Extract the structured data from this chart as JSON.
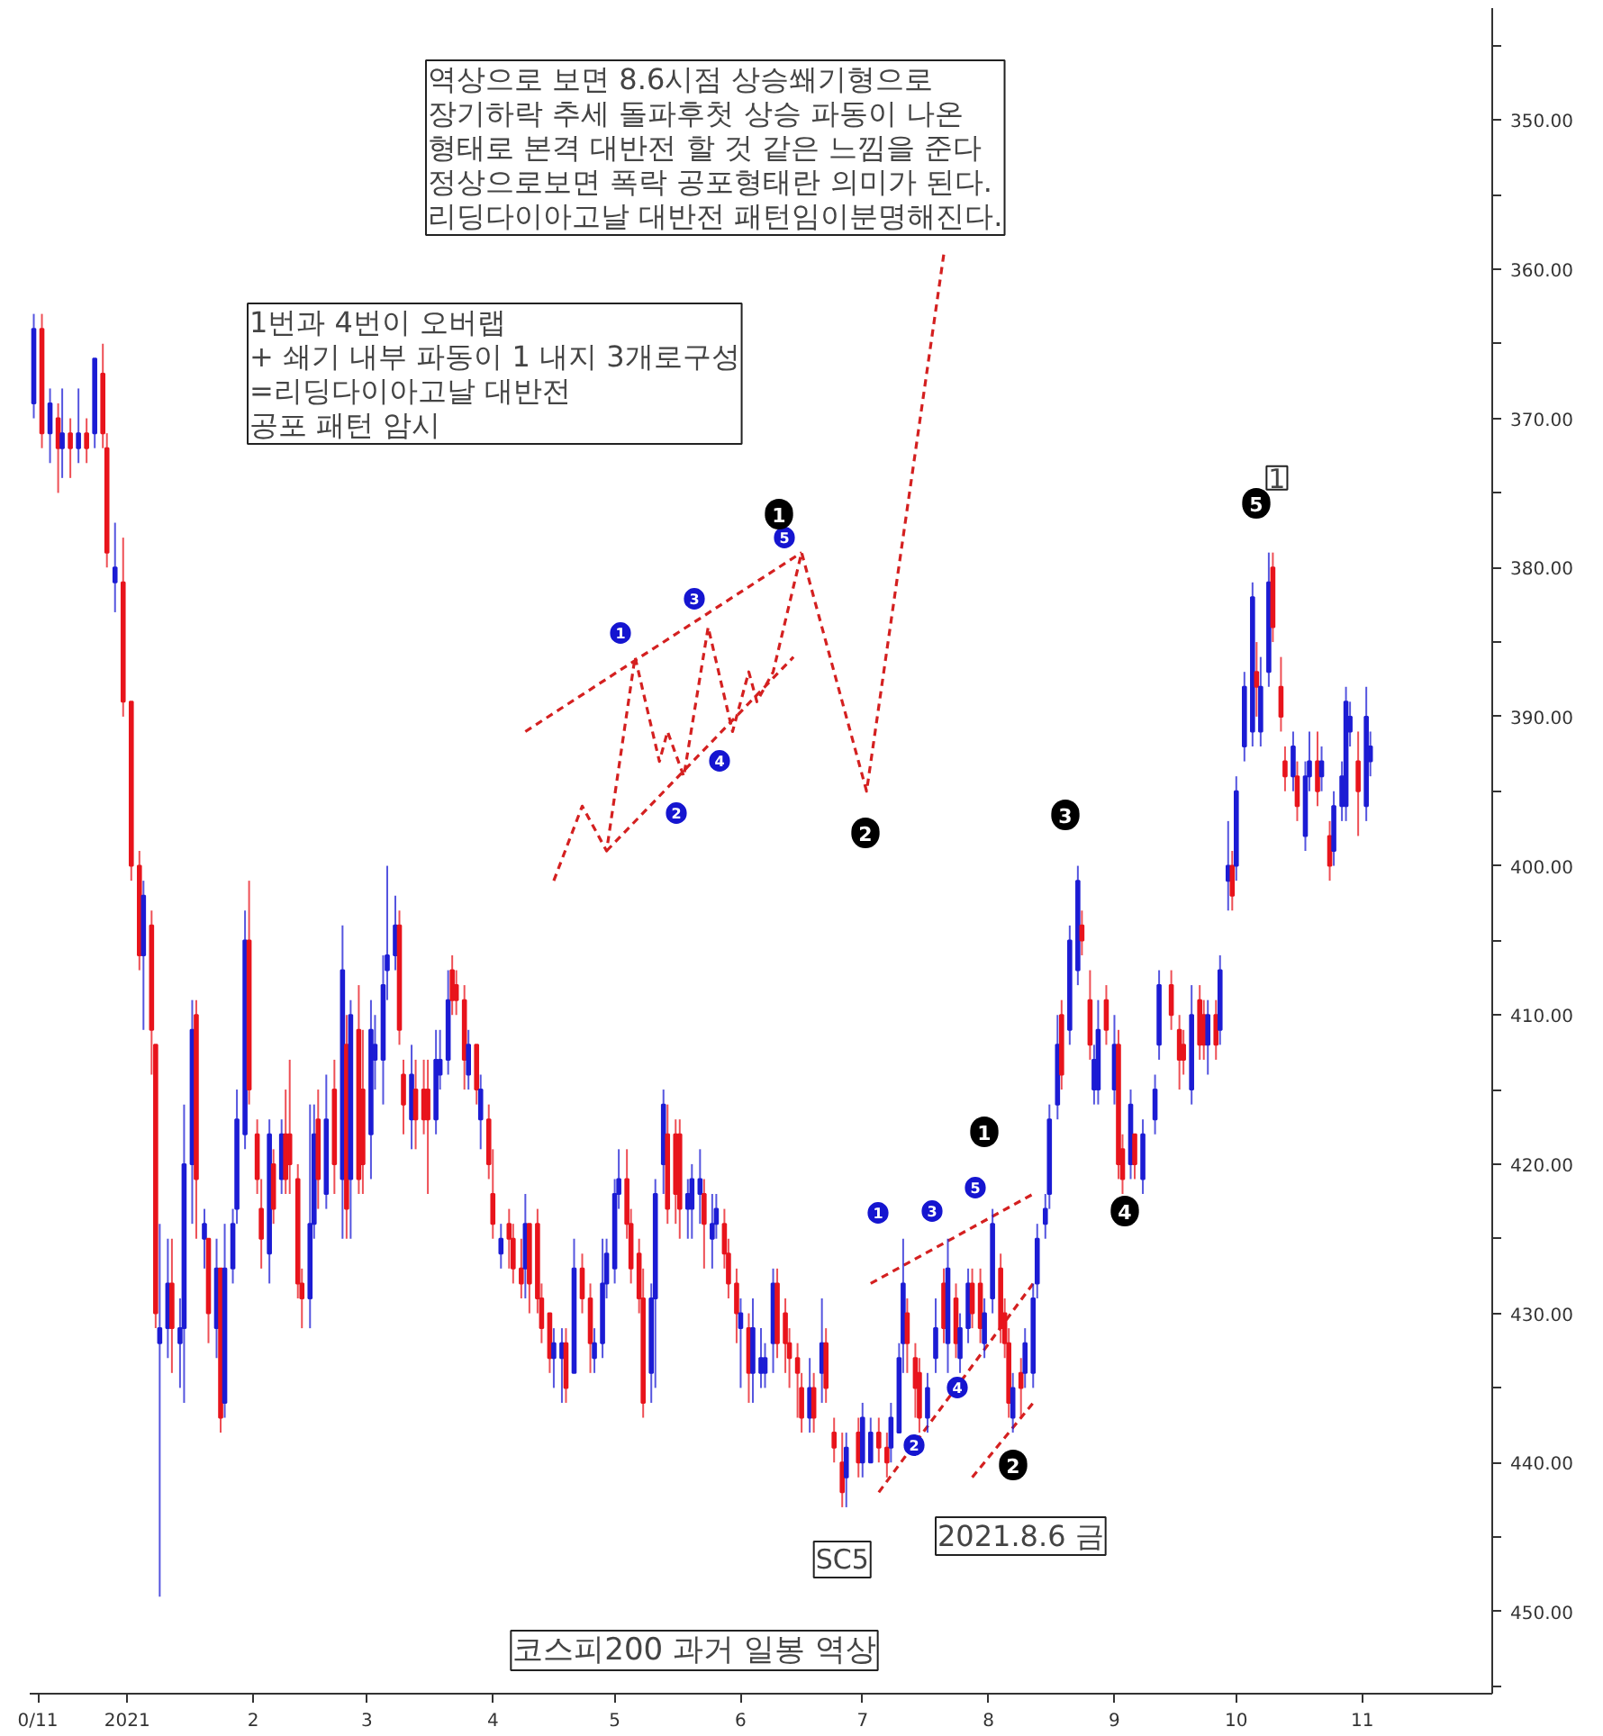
{
  "chart_data": {
    "type": "candlestick",
    "title": "코스피200 과거 일봉 역상",
    "annotations": [
      "역상으로 보면 8.6시점 상승쐐기형으로\n장기하락 추세 돌파후첫 상승 파동이 나온\n형태로 본격 대반전 할 것 같은 느낌을 준다\n정상으로보면 폭락 공포형태란 의미가 된다.\n리딩다이아고날 대반전 패턴임이분명해진다.",
      "1번과 4번이 오버랩\n+ 쇄기 내부 파동이 1 내지 3개로구성\n=리딩다이아고날 대반전\n공포 패턴 암시",
      {
        "text": "SC5",
        "x": "2021-06-26",
        "y": 446.5
      },
      "2021.8.6 금",
      {
        "text": "1",
        "x": "2021-10-11",
        "y": 374
      },
      "1",
      "2",
      "3",
      "4",
      "5",
      "1",
      "2",
      "3",
      "4",
      "5",
      "1",
      "2",
      "1",
      "2",
      "3",
      "4",
      "5"
    ],
    "xlim": [
      "2020-12-08",
      "2021-12-03"
    ],
    "xticks": [
      {
        "value": "2020-12-10",
        "label": "0/11"
      },
      {
        "value": "2021-01-01",
        "label": "2021"
      },
      {
        "value": "2021-02-01",
        "label": "2"
      },
      {
        "value": "2021-03-01",
        "label": "3"
      },
      {
        "value": "2021-04-01",
        "label": "4"
      },
      {
        "value": "2021-05-01",
        "label": "5"
      },
      {
        "value": "2021-06-01",
        "label": "6"
      },
      {
        "value": "2021-07-01",
        "label": "7"
      },
      {
        "value": "2021-08-01",
        "label": "8"
      },
      {
        "value": "2021-09-01",
        "label": "9"
      },
      {
        "value": "2021-10-01",
        "label": "10"
      },
      {
        "value": "2021-11-01",
        "label": "11"
      }
    ],
    "ylim": [
      455.5,
      342.5
    ],
    "yticks": [
      {
        "value": 345,
        "label": null
      },
      {
        "value": 350,
        "label": "350.00"
      },
      {
        "value": 355,
        "label": null
      },
      {
        "value": 360,
        "label": "360.00"
      },
      {
        "value": 365,
        "label": null
      },
      {
        "value": 370,
        "label": "370.00"
      },
      {
        "value": 375,
        "label": null
      },
      {
        "value": 380,
        "label": "380.00"
      },
      {
        "value": 385,
        "label": null
      },
      {
        "value": 390,
        "label": "390.00"
      },
      {
        "value": 395,
        "label": null
      },
      {
        "value": 400,
        "label": "400.00"
      },
      {
        "value": 405,
        "label": null
      },
      {
        "value": 410,
        "label": "410.00"
      },
      {
        "value": 415,
        "label": null
      },
      {
        "value": 420,
        "label": "420.00"
      },
      {
        "value": 425,
        "label": null
      },
      {
        "value": 430,
        "label": "430.00"
      },
      {
        "value": 435,
        "label": null
      },
      {
        "value": 440,
        "label": "440.00"
      },
      {
        "value": 445,
        "label": null
      },
      {
        "value": 450,
        "label": "450.00"
      },
      {
        "value": 455,
        "label": null
      }
    ],
    "x": [
      "2020-12-09",
      "2020-12-11",
      "2020-12-13",
      "2020-12-15",
      "2020-12-16",
      "2020-12-18",
      "2020-12-20",
      "2020-12-22",
      "2020-12-24",
      "2020-12-26",
      "2020-12-27",
      "2020-12-29",
      "2020-12-31",
      "2021-01-02",
      "2021-01-04",
      "2021-01-05",
      "2021-01-07",
      "2021-01-08",
      "2021-01-09",
      "2021-01-11",
      "2021-01-12",
      "2021-01-14",
      "2021-01-15",
      "2021-01-17",
      "2021-01-18",
      "2021-01-20",
      "2021-01-21",
      "2021-01-23",
      "2021-01-24",
      "2021-01-25",
      "2021-01-27",
      "2021-01-28",
      "2021-01-30",
      "2021-01-31",
      "2021-02-02",
      "2021-02-03",
      "2021-02-05",
      "2021-02-06",
      "2021-02-08",
      "2021-02-09",
      "2021-02-10",
      "2021-02-12",
      "2021-02-13",
      "2021-02-15",
      "2021-02-16",
      "2021-02-17",
      "2021-02-19",
      "2021-02-21",
      "2021-02-23",
      "2021-02-24",
      "2021-02-25",
      "2021-02-27",
      "2021-02-28",
      "2021-03-02",
      "2021-03-03",
      "2021-03-05",
      "2021-03-06",
      "2021-03-08",
      "2021-03-09",
      "2021-03-10",
      "2021-03-12",
      "2021-03-13",
      "2021-03-15",
      "2021-03-16",
      "2021-03-18",
      "2021-03-19",
      "2021-03-21",
      "2021-03-22",
      "2021-03-23",
      "2021-03-25",
      "2021-03-26",
      "2021-03-28",
      "2021-03-29",
      "2021-03-31",
      "2021-04-01",
      "2021-04-03",
      "2021-04-05",
      "2021-04-06",
      "2021-04-08",
      "2021-04-09",
      "2021-04-10",
      "2021-04-12",
      "2021-04-13",
      "2021-04-15",
      "2021-04-16",
      "2021-04-18",
      "2021-04-19",
      "2021-04-21",
      "2021-04-23",
      "2021-04-25",
      "2021-04-26",
      "2021-04-28",
      "2021-04-29",
      "2021-05-01",
      "2021-05-02",
      "2021-05-04",
      "2021-05-05",
      "2021-05-07",
      "2021-05-08",
      "2021-05-10",
      "2021-05-11",
      "2021-05-13",
      "2021-05-14",
      "2021-05-16",
      "2021-05-17",
      "2021-05-19",
      "2021-05-20",
      "2021-05-22",
      "2021-05-23",
      "2021-05-25",
      "2021-05-26",
      "2021-05-28",
      "2021-05-29",
      "2021-05-31",
      "2021-06-01",
      "2021-06-03",
      "2021-06-04",
      "2021-06-06",
      "2021-06-07",
      "2021-06-09",
      "2021-06-10",
      "2021-06-12",
      "2021-06-13",
      "2021-06-15",
      "2021-06-16",
      "2021-06-18",
      "2021-06-19",
      "2021-06-21",
      "2021-06-22",
      "2021-06-24",
      "2021-06-26",
      "2021-06-27",
      "2021-06-30",
      "2021-07-01",
      "2021-07-03",
      "2021-07-05",
      "2021-07-07",
      "2021-07-08",
      "2021-07-10",
      "2021-07-11",
      "2021-07-12",
      "2021-07-14",
      "2021-07-15",
      "2021-07-17",
      "2021-07-19",
      "2021-07-21",
      "2021-07-22",
      "2021-07-24",
      "2021-07-25",
      "2021-07-27",
      "2021-07-28",
      "2021-07-30",
      "2021-07-31",
      "2021-08-02",
      "2021-08-04",
      "2021-08-05",
      "2021-08-06",
      "2021-08-07",
      "2021-08-09",
      "2021-08-10",
      "2021-08-12",
      "2021-08-13",
      "2021-08-15",
      "2021-08-16",
      "2021-08-18",
      "2021-08-19",
      "2021-08-21",
      "2021-08-23",
      "2021-08-24",
      "2021-08-26",
      "2021-08-27",
      "2021-08-28",
      "2021-08-30",
      "2021-09-01",
      "2021-09-02",
      "2021-09-03",
      "2021-09-05",
      "2021-09-06",
      "2021-09-08",
      "2021-09-11",
      "2021-09-12",
      "2021-09-15",
      "2021-09-17",
      "2021-09-18",
      "2021-09-20",
      "2021-09-22",
      "2021-09-23",
      "2021-09-24",
      "2021-09-26",
      "2021-09-27",
      "2021-09-29",
      "2021-09-30",
      "2021-10-01",
      "2021-10-03",
      "2021-10-05",
      "2021-10-06",
      "2021-10-07",
      "2021-10-09",
      "2021-10-10",
      "2021-10-12",
      "2021-10-13",
      "2021-10-15",
      "2021-10-16",
      "2021-10-18",
      "2021-10-19",
      "2021-10-21",
      "2021-10-22",
      "2021-10-24",
      "2021-10-25",
      "2021-10-27",
      "2021-10-28",
      "2021-10-29",
      "2021-10-31",
      "2021-11-02",
      "2021-11-03"
    ],
    "ohlc": [
      [
        369,
        370,
        363,
        364
      ],
      [
        364,
        372,
        363,
        371
      ],
      [
        371,
        373,
        368,
        369
      ],
      [
        370,
        375,
        369,
        372
      ],
      [
        372,
        374,
        368,
        371
      ],
      [
        371,
        374,
        370,
        372
      ],
      [
        372,
        373,
        368,
        371
      ],
      [
        371,
        373,
        370,
        372
      ],
      [
        371,
        372,
        366,
        366
      ],
      [
        367,
        372,
        365,
        371
      ],
      [
        372,
        380,
        371,
        379
      ],
      [
        381,
        383,
        377,
        380
      ],
      [
        381,
        390,
        378,
        389
      ],
      [
        389,
        401,
        389,
        400
      ],
      [
        400,
        407,
        399,
        406
      ],
      [
        406,
        411,
        401,
        402
      ],
      [
        404,
        414,
        403,
        411
      ],
      [
        412,
        431,
        412,
        430
      ],
      [
        432,
        449,
        424,
        431
      ],
      [
        431,
        433,
        425,
        428
      ],
      [
        428,
        434,
        425,
        431
      ],
      [
        432,
        435,
        429,
        431
      ],
      [
        431,
        436,
        416,
        420
      ],
      [
        420,
        424,
        409,
        411
      ],
      [
        410,
        425,
        409,
        421
      ],
      [
        425,
        427,
        423,
        424
      ],
      [
        425,
        432,
        425,
        430
      ],
      [
        431,
        433,
        425,
        427
      ],
      [
        427,
        438,
        427,
        437
      ],
      [
        436,
        437,
        424,
        427
      ],
      [
        427,
        428,
        423,
        424
      ],
      [
        423,
        424,
        415,
        417
      ],
      [
        418,
        419,
        403,
        405
      ],
      [
        405,
        416,
        401,
        415
      ],
      [
        418,
        422,
        417,
        421
      ],
      [
        423,
        427,
        421,
        425
      ],
      [
        426,
        428,
        417,
        418
      ],
      [
        420,
        424,
        419,
        423
      ],
      [
        421,
        422,
        417,
        418
      ],
      [
        418,
        422,
        415,
        421
      ],
      [
        418,
        422,
        413,
        420
      ],
      [
        421,
        429,
        420,
        428
      ],
      [
        428,
        431,
        427,
        429
      ],
      [
        429,
        431,
        416,
        424
      ],
      [
        424,
        425,
        416,
        418
      ],
      [
        417,
        423,
        415,
        421
      ],
      [
        422,
        423,
        414,
        417
      ],
      [
        415,
        422,
        413,
        420
      ],
      [
        421,
        425,
        404,
        407
      ],
      [
        412,
        425,
        410,
        423
      ],
      [
        421,
        425,
        409,
        410
      ],
      [
        411,
        422,
        408,
        421
      ],
      [
        415,
        422,
        411,
        420
      ],
      [
        418,
        421,
        409,
        411
      ],
      [
        413,
        415,
        410,
        412
      ],
      [
        413,
        416,
        406,
        408
      ],
      [
        407,
        409,
        400,
        406
      ],
      [
        406,
        407,
        402,
        404
      ],
      [
        404,
        412,
        403,
        411
      ],
      [
        414,
        418,
        413,
        416
      ],
      [
        417,
        419,
        412,
        414
      ],
      [
        415,
        419,
        413,
        417
      ],
      [
        415,
        418,
        413,
        417
      ],
      [
        415,
        422,
        413,
        417
      ],
      [
        417,
        418,
        411,
        413
      ],
      [
        414,
        415,
        411,
        413
      ],
      [
        413,
        414,
        407,
        409
      ],
      [
        407,
        410,
        406,
        409
      ],
      [
        408,
        410,
        407,
        409
      ],
      [
        409,
        415,
        408,
        413
      ],
      [
        414,
        415,
        411,
        412
      ],
      [
        412,
        416,
        412,
        415
      ],
      [
        417,
        419,
        414,
        415
      ],
      [
        417,
        421,
        416,
        420
      ],
      [
        422,
        425,
        419,
        424
      ],
      [
        426,
        427,
        424,
        425
      ],
      [
        424,
        427,
        423,
        425
      ],
      [
        425,
        428,
        424,
        427
      ],
      [
        427,
        429,
        425,
        428
      ],
      [
        427,
        429,
        422,
        424
      ],
      [
        424,
        430,
        424,
        428
      ],
      [
        424,
        430,
        423,
        429
      ],
      [
        429,
        432,
        428,
        431
      ],
      [
        430,
        434,
        430,
        433
      ],
      [
        433,
        435,
        431,
        432
      ],
      [
        433,
        436,
        431,
        432
      ],
      [
        432,
        436,
        431,
        435
      ],
      [
        434,
        434,
        425,
        427
      ],
      [
        427,
        430,
        426,
        429
      ],
      [
        429,
        434,
        428,
        432
      ],
      [
        433,
        434,
        431,
        432
      ],
      [
        432,
        433,
        425,
        428
      ],
      [
        428,
        429,
        425,
        426
      ],
      [
        427,
        428,
        421,
        422
      ],
      [
        422,
        423,
        419,
        421
      ],
      [
        421,
        425,
        419,
        424
      ],
      [
        424,
        428,
        423,
        427
      ],
      [
        426,
        430,
        425,
        429
      ],
      [
        429,
        437,
        427,
        436
      ],
      [
        434,
        436,
        428,
        429
      ],
      [
        429,
        435,
        421,
        422
      ],
      [
        420,
        422,
        415,
        416
      ],
      [
        418,
        424,
        416,
        423
      ],
      [
        418,
        424,
        417,
        422
      ],
      [
        418,
        425,
        417,
        423
      ],
      [
        423,
        425,
        421,
        422
      ],
      [
        423,
        425,
        420,
        421
      ],
      [
        422,
        424,
        419,
        421
      ],
      [
        422,
        427,
        421,
        424
      ],
      [
        425,
        427,
        422,
        424
      ],
      [
        424,
        425,
        422,
        423
      ],
      [
        424,
        427,
        423,
        426
      ],
      [
        426,
        429,
        425,
        428
      ],
      [
        428,
        432,
        427,
        430
      ],
      [
        431,
        435,
        429,
        430
      ],
      [
        431,
        436,
        430,
        434
      ],
      [
        434,
        436,
        429,
        431
      ],
      [
        434,
        435,
        431,
        433
      ],
      [
        434,
        435,
        432,
        433
      ],
      [
        432,
        434,
        427,
        428
      ],
      [
        428,
        433,
        427,
        432
      ],
      [
        430,
        434,
        429,
        432
      ],
      [
        432,
        435,
        431,
        433
      ],
      [
        433,
        437,
        432,
        434
      ],
      [
        435,
        438,
        434,
        437
      ],
      [
        437,
        438,
        433,
        435
      ],
      [
        435,
        438,
        434,
        437
      ],
      [
        434,
        436,
        429,
        432
      ],
      [
        432,
        436,
        431,
        435
      ],
      [
        438,
        440,
        437,
        439
      ],
      [
        440,
        443,
        438,
        442
      ],
      [
        441,
        443,
        438,
        439
      ],
      [
        438,
        441,
        437,
        440
      ],
      [
        440,
        441,
        436,
        437
      ],
      [
        440,
        440,
        437,
        438
      ],
      [
        438,
        440,
        437,
        439
      ],
      [
        439,
        441,
        438,
        440
      ],
      [
        439,
        440,
        436,
        437
      ],
      [
        438,
        438,
        432,
        433
      ],
      [
        432,
        434,
        425,
        428
      ],
      [
        430,
        434,
        429,
        432
      ],
      [
        433,
        437,
        432,
        435
      ],
      [
        434,
        438,
        433,
        437
      ],
      [
        437,
        438,
        434,
        435
      ],
      [
        433,
        434,
        429,
        431
      ],
      [
        428,
        432,
        427,
        431
      ],
      [
        432,
        434,
        425,
        427
      ],
      [
        429,
        433,
        428,
        432
      ],
      [
        433,
        434,
        430,
        431
      ],
      [
        431,
        432,
        427,
        428
      ],
      [
        428,
        431,
        427,
        430
      ],
      [
        428,
        432,
        427,
        431
      ],
      [
        432,
        433,
        429,
        430
      ],
      [
        429,
        430,
        423,
        424
      ],
      [
        427,
        432,
        426,
        431
      ],
      [
        430,
        433,
        429,
        432
      ],
      [
        432,
        437,
        431,
        436
      ],
      [
        437,
        438,
        434,
        435
      ],
      [
        434,
        437,
        433,
        435
      ],
      [
        434,
        435,
        431,
        432
      ],
      [
        434,
        435,
        428,
        429
      ],
      [
        428,
        429,
        424,
        425
      ],
      [
        424,
        425,
        422,
        423
      ],
      [
        422,
        423,
        416,
        417
      ],
      [
        416,
        417,
        410,
        412
      ],
      [
        410,
        415,
        409,
        414
      ],
      [
        411,
        412,
        404,
        405
      ],
      [
        407,
        408,
        400,
        401
      ],
      [
        404,
        406,
        403,
        405
      ],
      [
        409,
        413,
        407,
        412
      ],
      [
        415,
        416,
        412,
        413
      ],
      [
        415,
        416,
        409,
        411
      ],
      [
        409,
        412,
        408,
        411
      ],
      [
        415,
        416,
        410,
        412
      ],
      [
        412,
        421,
        411,
        420
      ],
      [
        419,
        422,
        418,
        421
      ],
      [
        420,
        421,
        415,
        416
      ],
      [
        418,
        421,
        418,
        420
      ],
      [
        421,
        422,
        417,
        418
      ],
      [
        417,
        418,
        414,
        415
      ],
      [
        412,
        413,
        407,
        408
      ],
      [
        408,
        411,
        407,
        410
      ],
      [
        411,
        415,
        410,
        413
      ],
      [
        412,
        414,
        411,
        413
      ],
      [
        415,
        416,
        408,
        410
      ],
      [
        409,
        413,
        408,
        412
      ],
      [
        410,
        413,
        409,
        412
      ],
      [
        412,
        414,
        409,
        410
      ],
      [
        410,
        413,
        409,
        412
      ],
      [
        411,
        412,
        406,
        407
      ],
      [
        401,
        403,
        397,
        400
      ],
      [
        400,
        403,
        399,
        402
      ],
      [
        400,
        401,
        394,
        395
      ],
      [
        392,
        393,
        387,
        388
      ],
      [
        391,
        392,
        381,
        382
      ],
      [
        387,
        390,
        385,
        388
      ],
      [
        391,
        392,
        386,
        388
      ],
      [
        387,
        388,
        379,
        381
      ],
      [
        380,
        385,
        379,
        384
      ],
      [
        388,
        391,
        386,
        390
      ],
      [
        393,
        395,
        392,
        394
      ],
      [
        394,
        395,
        391,
        392
      ],
      [
        394,
        397,
        393,
        396
      ],
      [
        398,
        399,
        393,
        394
      ],
      [
        394,
        395,
        391,
        393
      ],
      [
        393,
        396,
        391,
        395
      ],
      [
        394,
        395,
        392,
        393
      ],
      [
        398,
        401,
        397,
        400
      ],
      [
        399,
        400,
        395,
        396
      ],
      [
        396,
        397,
        393,
        394
      ],
      [
        396,
        397,
        388,
        389
      ],
      [
        391,
        392,
        389,
        390
      ],
      [
        393,
        398,
        391,
        395
      ],
      [
        396,
        397,
        388,
        390
      ],
      [
        393,
        394,
        391,
        392
      ]
    ],
    "colors": [
      "#1c1cd4",
      "#e8141c",
      "#1c1cd4",
      "#e8141c",
      "#1c1cd4",
      "#e8141c",
      "#1c1cd4",
      "#e8141c",
      "#1c1cd4",
      "#e8141c",
      "#e8141c",
      "#1c1cd4",
      "#e8141c",
      "#e8141c",
      "#e8141c",
      "#1c1cd4",
      "#e8141c",
      "#e8141c",
      "#1c1cd4",
      "#1c1cd4",
      "#e8141c",
      "#1c1cd4",
      "#1c1cd4",
      "#1c1cd4",
      "#e8141c",
      "#1c1cd4",
      "#e8141c",
      "#1c1cd4",
      "#e8141c",
      "#1c1cd4",
      "#1c1cd4",
      "#1c1cd4",
      "#1c1cd4",
      "#e8141c",
      "#e8141c",
      "#e8141c",
      "#1c1cd4",
      "#e8141c",
      "#1c1cd4",
      "#e8141c",
      "#e8141c",
      "#e8141c",
      "#e8141c",
      "#1c1cd4",
      "#1c1cd4",
      "#e8141c",
      "#1c1cd4",
      "#e8141c",
      "#1c1cd4",
      "#e8141c",
      "#1c1cd4",
      "#e8141c",
      "#e8141c",
      "#1c1cd4",
      "#1c1cd4",
      "#1c1cd4",
      "#1c1cd4",
      "#1c1cd4",
      "#e8141c",
      "#e8141c",
      "#1c1cd4",
      "#e8141c",
      "#e8141c",
      "#e8141c",
      "#1c1cd4",
      "#1c1cd4",
      "#1c1cd4",
      "#e8141c",
      "#e8141c",
      "#e8141c",
      "#1c1cd4",
      "#e8141c",
      "#1c1cd4",
      "#e8141c",
      "#e8141c",
      "#1c1cd4",
      "#e8141c",
      "#e8141c",
      "#e8141c",
      "#1c1cd4",
      "#e8141c",
      "#e8141c",
      "#e8141c",
      "#e8141c",
      "#1c1cd4",
      "#1c1cd4",
      "#e8141c",
      "#1c1cd4",
      "#e8141c",
      "#e8141c",
      "#1c1cd4",
      "#1c1cd4",
      "#1c1cd4",
      "#1c1cd4",
      "#1c1cd4",
      "#e8141c",
      "#e8141c",
      "#e8141c",
      "#e8141c",
      "#1c1cd4",
      "#1c1cd4",
      "#1c1cd4",
      "#e8141c",
      "#e8141c",
      "#e8141c",
      "#1c1cd4",
      "#1c1cd4",
      "#1c1cd4",
      "#e8141c",
      "#1c1cd4",
      "#1c1cd4",
      "#e8141c",
      "#e8141c",
      "#e8141c",
      "#1c1cd4",
      "#e8141c",
      "#1c1cd4",
      "#1c1cd4",
      "#1c1cd4",
      "#1c1cd4",
      "#e8141c",
      "#e8141c",
      "#e8141c",
      "#e8141c",
      "#e8141c",
      "#1c1cd4",
      "#e8141c",
      "#1c1cd4",
      "#e8141c",
      "#e8141c",
      "#e8141c",
      "#1c1cd4",
      "#e8141c",
      "#1c1cd4",
      "#1c1cd4",
      "#e8141c",
      "#e8141c",
      "#1c1cd4",
      "#1c1cd4",
      "#1c1cd4",
      "#e8141c",
      "#e8141c",
      "#e8141c",
      "#1c1cd4",
      "#1c1cd4",
      "#e8141c",
      "#1c1cd4",
      "#e8141c",
      "#1c1cd4",
      "#1c1cd4",
      "#e8141c",
      "#e8141c",
      "#1c1cd4",
      "#1c1cd4",
      "#e8141c",
      "#e8141c",
      "#e8141c",
      "#1c1cd4",
      "#e8141c",
      "#1c1cd4",
      "#1c1cd4",
      "#1c1cd4",
      "#1c1cd4",
      "#1c1cd4",
      "#1c1cd4",
      "#e8141c",
      "#1c1cd4",
      "#1c1cd4",
      "#e8141c",
      "#e8141c",
      "#1c1cd4",
      "#1c1cd4",
      "#e8141c",
      "#1c1cd4",
      "#e8141c",
      "#e8141c",
      "#1c1cd4",
      "#e8141c",
      "#1c1cd4",
      "#1c1cd4",
      "#1c1cd4",
      "#e8141c",
      "#e8141c",
      "#e8141c",
      "#1c1cd4",
      "#e8141c",
      "#e8141c",
      "#1c1cd4",
      "#e8141c",
      "#1c1cd4",
      "#1c1cd4",
      "#e8141c",
      "#1c1cd4",
      "#1c1cd4",
      "#1c1cd4",
      "#e8141c",
      "#1c1cd4",
      "#1c1cd4",
      "#e8141c",
      "#e8141c",
      "#e8141c",
      "#1c1cd4",
      "#e8141c",
      "#1c1cd4",
      "#1c1cd4",
      "#e8141c",
      "#1c1cd4",
      "#e8141c",
      "#1c1cd4",
      "#1c1cd4",
      "#1c1cd4",
      "#1c1cd4",
      "#e8141c",
      "#1c1cd4",
      "#1c1cd4"
    ],
    "series": [
      {
        "type": "line",
        "color": "#d42020",
        "line_style": "dashed",
        "x": [
          "2021-04-16",
          "2021-04-23",
          "2021-04-29",
          "2021-05-06",
          "2021-05-12",
          "2021-05-14",
          "2021-05-18",
          "2021-05-24",
          "2021-05-30",
          "2021-06-03",
          "2021-06-05",
          "2021-06-09",
          "2021-06-16",
          "2021-07-02",
          "2021-07-21"
        ],
        "values": [
          401,
          396,
          399,
          386,
          393,
          391,
          394,
          384,
          391,
          387,
          389,
          387,
          379,
          395,
          359
        ]
      },
      {
        "type": "line",
        "color": "#d42020",
        "line_style": "dashed",
        "x": [
          "2021-04-09",
          "2021-06-16"
        ],
        "values": [
          391,
          379
        ]
      },
      {
        "type": "line",
        "color": "#d42020",
        "line_style": "dashed",
        "x": [
          "2021-04-29",
          "2021-06-14"
        ],
        "values": [
          399,
          386
        ]
      },
      {
        "type": "line",
        "color": "#d42020",
        "line_style": "dashed",
        "x": [
          "2021-07-03",
          "2021-08-12"
        ],
        "values": [
          428,
          422
        ]
      },
      {
        "type": "line",
        "color": "#d42020",
        "line_style": "dashed",
        "x": [
          "2021-07-05",
          "2021-08-12"
        ],
        "values": [
          442,
          428
        ]
      },
      {
        "type": "line",
        "color": "#d42020",
        "line_style": "dashed",
        "x": [
          "2021-07-28",
          "2021-08-12"
        ],
        "values": [
          441,
          436
        ]
      }
    ]
  }
}
